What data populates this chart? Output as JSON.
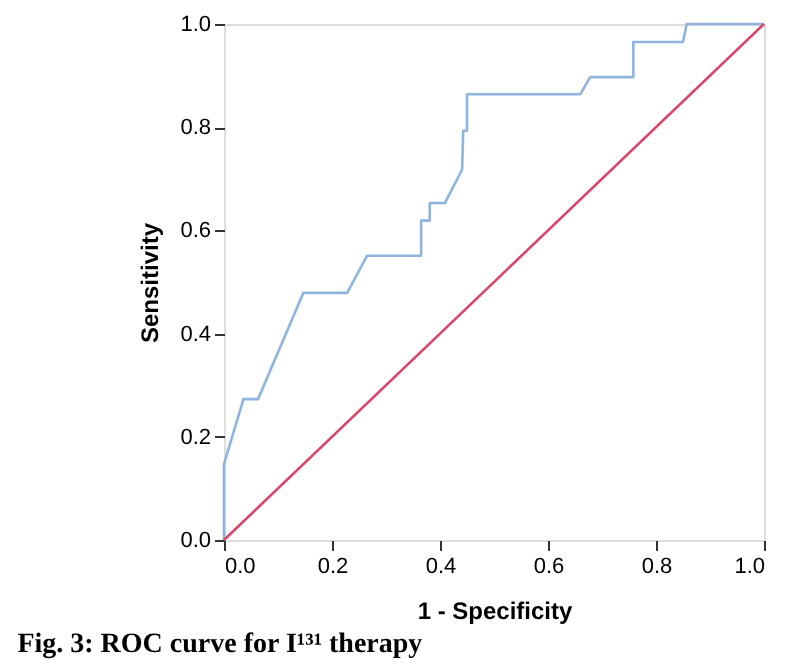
{
  "chart_data": {
    "type": "line",
    "xlabel": "1 - Specificity",
    "ylabel": "Sensitivity",
    "annotations": [
      "Fig. 3: ROC curve for I¹³¹ therapy"
    ],
    "xlim": [
      0,
      1
    ],
    "ylim": [
      0,
      1
    ],
    "xticks": [
      {
        "value": 0,
        "label": "0.0"
      },
      0.2,
      0.4,
      0.6,
      0.8,
      {
        "value": 1,
        "label": "1.0"
      }
    ],
    "yticks": [
      {
        "value": 0,
        "label": "0.0"
      },
      0.2,
      0.4,
      0.6,
      0.8,
      {
        "value": 1,
        "label": "1.0"
      }
    ],
    "grid": false,
    "marker": "none",
    "line_style": "solid",
    "series": [
      {
        "color": "#8fb4de",
        "x": [
          0,
          0,
          0.036,
          0.063,
          0.147,
          0.228,
          0.265,
          0.365,
          0.365,
          0.381,
          0.381,
          0.409,
          0.441,
          0.443,
          0.45,
          0.45,
          0.66,
          0.678,
          0.758,
          0.758,
          0.85,
          0.857,
          1.0
        ],
        "values": [
          0,
          0.147,
          0.273,
          0.273,
          0.479,
          0.479,
          0.551,
          0.551,
          0.619,
          0.619,
          0.653,
          0.653,
          0.718,
          0.793,
          0.793,
          0.864,
          0.864,
          0.897,
          0.897,
          0.965,
          0.965,
          1.0,
          1.0
        ]
      },
      {
        "color": "#d9466a",
        "x": [
          0,
          1
        ],
        "values": [
          0,
          1
        ]
      }
    ]
  }
}
